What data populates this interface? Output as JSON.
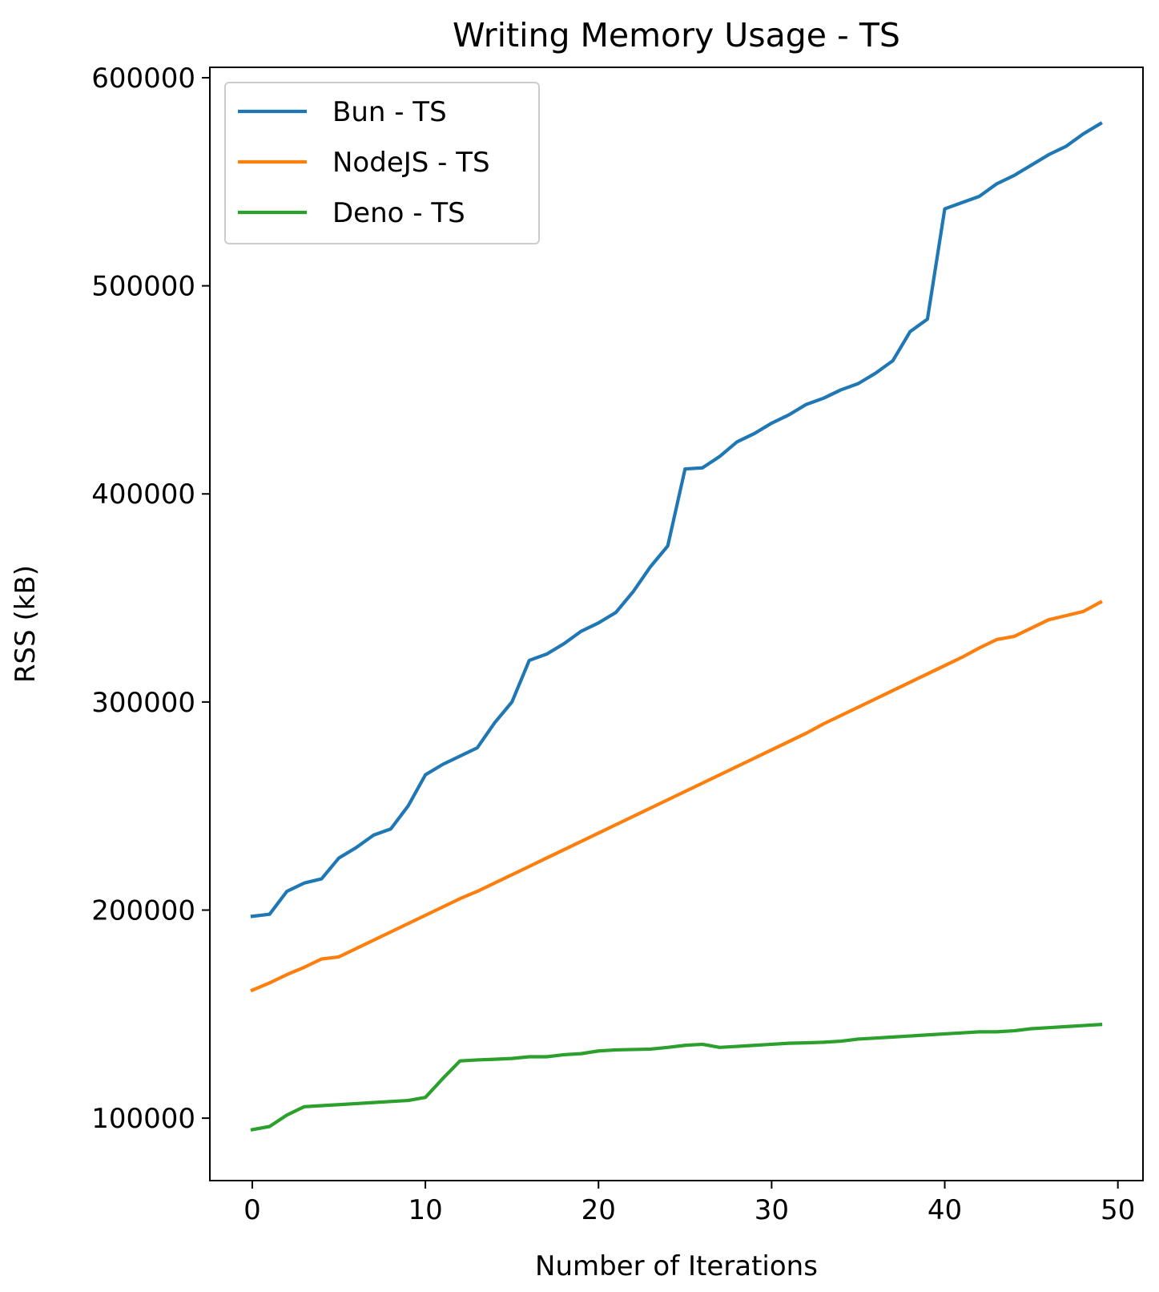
{
  "chart_data": {
    "type": "line",
    "title": "Writing Memory Usage - TS",
    "xlabel": "Number of Iterations",
    "ylabel": "RSS (kB)",
    "xlim": [
      -2.45,
      51.45
    ],
    "ylim": [
      70000,
      605000
    ],
    "x_ticks": [
      0,
      10,
      20,
      30,
      40,
      50
    ],
    "y_ticks": [
      100000,
      200000,
      300000,
      400000,
      500000,
      600000
    ],
    "grid": false,
    "legend_position": "top-left",
    "x": [
      0,
      1,
      2,
      3,
      4,
      5,
      6,
      7,
      8,
      9,
      10,
      11,
      12,
      13,
      14,
      15,
      16,
      17,
      18,
      19,
      20,
      21,
      22,
      23,
      24,
      25,
      26,
      27,
      28,
      29,
      30,
      31,
      32,
      33,
      34,
      35,
      36,
      37,
      38,
      39,
      40,
      41,
      42,
      43,
      44,
      45,
      46,
      47,
      48,
      49
    ],
    "series": [
      {
        "name": "Bun - TS",
        "color": "#1f77b4",
        "values": [
          197000,
          198000,
          209000,
          213000,
          215000,
          225000,
          230000,
          236000,
          239000,
          250000,
          265000,
          270000,
          274000,
          278000,
          290000,
          300000,
          320000,
          323000,
          328000,
          334000,
          338000,
          343000,
          353000,
          365000,
          375000,
          412000,
          412500,
          418000,
          425000,
          429000,
          434000,
          438000,
          443000,
          446000,
          450000,
          453000,
          458000,
          464000,
          478000,
          484000,
          537000,
          540000,
          543000,
          549000,
          553000,
          558000,
          563000,
          567000,
          573000,
          578000
        ]
      },
      {
        "name": "NodeJS - TS",
        "color": "#ff7f0e",
        "values": [
          161500,
          165000,
          169000,
          172500,
          176500,
          177500,
          181500,
          185500,
          189500,
          193500,
          197500,
          201500,
          205500,
          209000,
          213000,
          217000,
          221000,
          225000,
          229000,
          233000,
          237000,
          241000,
          245000,
          249000,
          253000,
          257000,
          261000,
          265000,
          269000,
          273000,
          277000,
          281000,
          285000,
          289500,
          293500,
          297500,
          301500,
          305500,
          309500,
          313500,
          317500,
          321500,
          326000,
          330000,
          331500,
          335500,
          339500,
          341500,
          343500,
          348000
        ]
      },
      {
        "name": "Deno - TS",
        "color": "#2ca02c",
        "values": [
          94500,
          96000,
          101500,
          105500,
          106000,
          106500,
          107000,
          107500,
          108000,
          108500,
          110000,
          119000,
          127500,
          128000,
          128300,
          128700,
          129500,
          129500,
          130500,
          131000,
          132300,
          132800,
          133000,
          133200,
          134000,
          135000,
          135500,
          134000,
          134500,
          135000,
          135500,
          136000,
          136200,
          136500,
          137000,
          138000,
          138500,
          139000,
          139500,
          140000,
          140500,
          141000,
          141500,
          141500,
          142000,
          143000,
          143500,
          144000,
          144500,
          145000
        ]
      }
    ]
  }
}
